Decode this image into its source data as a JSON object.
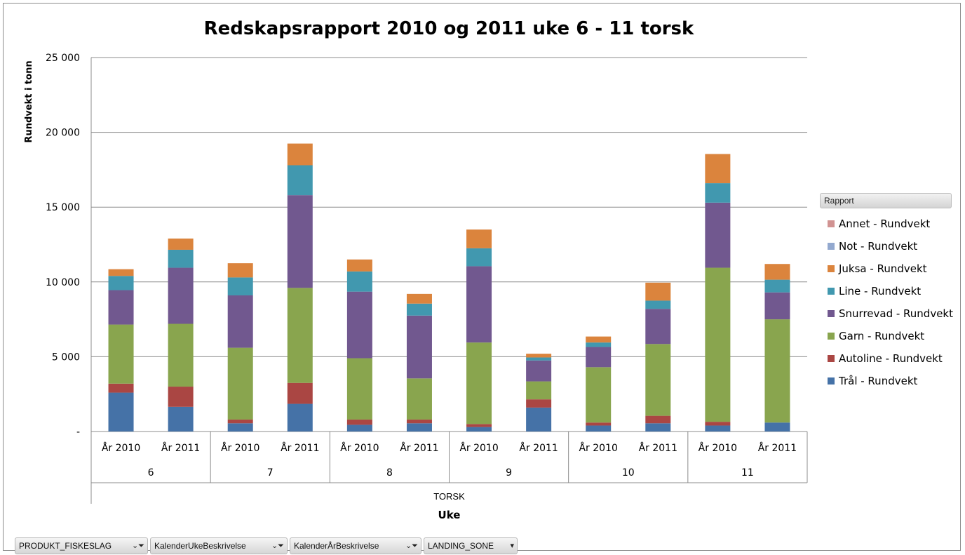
{
  "chart_data": {
    "type": "bar",
    "stacked": true,
    "title": "Redskapsrapport 2010 og 2011 uke 6 - 11 torsk",
    "ylabel": "Rundvekt i tonn",
    "xlabel": "Uke",
    "xgroup_label": "TORSK",
    "ylim": [
      0,
      25000
    ],
    "yticks": [
      "-",
      "5 000",
      "10 000",
      "15 000",
      "20 000",
      "25 000"
    ],
    "grid": true,
    "legend_position": "right",
    "legend_title": "Rapport",
    "weeks": [
      "6",
      "7",
      "8",
      "9",
      "10",
      "11"
    ],
    "categories": [
      "År 2010",
      "År 2011",
      "År 2010",
      "År 2011",
      "År 2010",
      "År 2011",
      "År 2010",
      "År 2011",
      "År 2010",
      "År 2011",
      "År 2010",
      "År 2011"
    ],
    "series": [
      {
        "name": "Trål - Rundvekt",
        "color": "#4572A7",
        "values": [
          2600,
          1650,
          550,
          1850,
          450,
          550,
          300,
          1600,
          400,
          550,
          400,
          600
        ]
      },
      {
        "name": "Autoline - Rundvekt",
        "color": "#AA4643",
        "values": [
          600,
          1350,
          250,
          1400,
          350,
          250,
          200,
          550,
          200,
          500,
          250,
          0
        ]
      },
      {
        "name": "Garn - Rundvekt",
        "color": "#89A54E",
        "values": [
          3950,
          4200,
          4800,
          6350,
          4100,
          2750,
          5450,
          1200,
          3700,
          4800,
          10300,
          6900
        ]
      },
      {
        "name": "Snurrevad - Rundvekt",
        "color": "#71588F",
        "values": [
          2300,
          3750,
          3500,
          6200,
          4450,
          4200,
          5100,
          1400,
          1350,
          2350,
          4350,
          1800
        ]
      },
      {
        "name": "Line - Rundvekt",
        "color": "#4198AF",
        "values": [
          950,
          1200,
          1200,
          2000,
          1350,
          800,
          1200,
          200,
          300,
          550,
          1300,
          850
        ]
      },
      {
        "name": "Juksa - Rundvekt",
        "color": "#DB843D",
        "values": [
          450,
          750,
          950,
          1450,
          800,
          650,
          1250,
          250,
          400,
          1200,
          1950,
          1050
        ]
      },
      {
        "name": "Not - Rundvekt",
        "color": "#93A9CF",
        "values": [
          0,
          0,
          0,
          0,
          0,
          0,
          0,
          0,
          0,
          0,
          0,
          0
        ]
      },
      {
        "name": "Annet - Rundvekt",
        "color": "#D19392",
        "values": [
          0,
          0,
          0,
          0,
          0,
          0,
          0,
          0,
          0,
          0,
          0,
          0
        ]
      }
    ],
    "legend_order": [
      "Annet - Rundvekt",
      "Not - Rundvekt",
      "Juksa - Rundvekt",
      "Line - Rundvekt",
      "Snurrevad - Rundvekt",
      "Garn - Rundvekt",
      "Autoline - Rundvekt",
      "Trål - Rundvekt"
    ]
  },
  "filters": [
    {
      "label": "PRODUKT_FISKESLAG",
      "icon": "filter-dropdown-icon"
    },
    {
      "label": "KalenderUkeBeskrivelse",
      "icon": "filter-dropdown-icon"
    },
    {
      "label": "KalenderÅrBeskrivelse",
      "icon": "filter-dropdown-icon"
    },
    {
      "label": "LANDING_SONE",
      "icon": "dropdown-arrow-icon"
    }
  ]
}
